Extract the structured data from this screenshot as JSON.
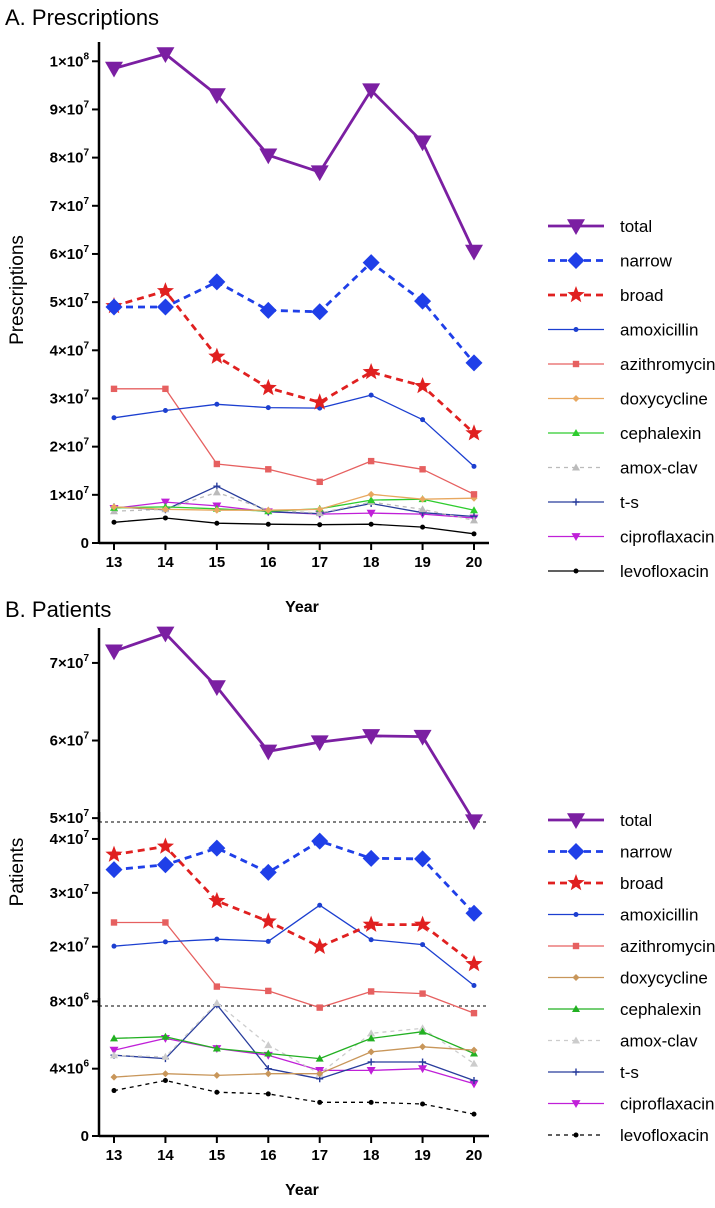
{
  "chart_data": [
    {
      "panel_id": "A",
      "type": "line",
      "title": "A. Prescriptions",
      "ylabel": "Prescriptions",
      "xlabel": "Year",
      "x": [
        13,
        14,
        15,
        16,
        17,
        18,
        19,
        20
      ],
      "ylim": [
        0,
        104000000
      ],
      "yticks": [
        {
          "value": 0,
          "mant": "0",
          "exp": ""
        },
        {
          "value": 10000000,
          "mant": "1×10",
          "exp": "7"
        },
        {
          "value": 20000000,
          "mant": "2×10",
          "exp": "7"
        },
        {
          "value": 30000000,
          "mant": "3×10",
          "exp": "7"
        },
        {
          "value": 40000000,
          "mant": "4×10",
          "exp": "7"
        },
        {
          "value": 50000000,
          "mant": "5×10",
          "exp": "7"
        },
        {
          "value": 60000000,
          "mant": "6×10",
          "exp": "7"
        },
        {
          "value": 70000000,
          "mant": "7×10",
          "exp": "7"
        },
        {
          "value": 80000000,
          "mant": "8×10",
          "exp": "7"
        },
        {
          "value": 90000000,
          "mant": "9×10",
          "exp": "7"
        },
        {
          "value": 100000000,
          "mant": "1×10",
          "exp": "8"
        }
      ],
      "series": [
        {
          "name": "total",
          "color": "#7B1FA2",
          "marker": "triangle-down",
          "dashed": false,
          "values": [
            98500000,
            101500000,
            93000000,
            80500000,
            77000000,
            94000000,
            83200000,
            60500000
          ]
        },
        {
          "name": "narrow",
          "color": "#1F3FE8",
          "marker": "diamond",
          "dashed": true,
          "values": [
            49000000,
            49000000,
            54200000,
            48300000,
            48000000,
            58200000,
            50200000,
            37400000
          ]
        },
        {
          "name": "broad",
          "color": "#E02020",
          "marker": "star",
          "dashed": true,
          "values": [
            49200000,
            52300000,
            38700000,
            32200000,
            29200000,
            35500000,
            32600000,
            22800000
          ]
        },
        {
          "name": "amoxicillin",
          "color": "#1C3FD0",
          "marker": "circle",
          "dashed": false,
          "values": [
            26000000,
            27500000,
            28800000,
            28100000,
            28000000,
            30700000,
            25600000,
            15900000
          ]
        },
        {
          "name": "azithromycin",
          "color": "#E66060",
          "marker": "square",
          "dashed": false,
          "values": [
            32000000,
            32000000,
            16400000,
            15300000,
            12700000,
            17000000,
            15300000,
            10100000
          ]
        },
        {
          "name": "doxycycline",
          "color": "#E8A860",
          "marker": "diamond-small",
          "dashed": false,
          "values": [
            7500000,
            7000000,
            6800000,
            6800000,
            7000000,
            10100000,
            9100000,
            9300000
          ]
        },
        {
          "name": "cephalexin",
          "color": "#2ECC2E",
          "marker": "triangle-up",
          "dashed": false,
          "values": [
            7300000,
            7500000,
            7100000,
            6600000,
            7100000,
            8900000,
            9100000,
            6800000
          ]
        },
        {
          "name": "amox-clav",
          "color": "#BBBBBB",
          "marker": "triangle-up",
          "dashed": true,
          "values": [
            6600000,
            7000000,
            10500000,
            6800000,
            6200000,
            8500000,
            7000000,
            4700000
          ]
        },
        {
          "name": "t-s",
          "color": "#283C9C",
          "marker": "plus",
          "dashed": false,
          "values": [
            7500000,
            6900000,
            11800000,
            6500000,
            6100000,
            8200000,
            6300000,
            5500000
          ]
        },
        {
          "name": "ciproflaxacin",
          "color": "#C020D8",
          "marker": "triangle-down",
          "dashed": false,
          "values": [
            7200000,
            8500000,
            7700000,
            6500000,
            6000000,
            6200000,
            6000000,
            5200000
          ]
        },
        {
          "name": "levofloxacin",
          "color": "#000000",
          "marker": "circle",
          "dashed": false,
          "values": [
            4300000,
            5200000,
            4100000,
            3900000,
            3800000,
            3900000,
            3300000,
            1900000
          ]
        }
      ]
    },
    {
      "panel_id": "B",
      "type": "line",
      "title": "B. Patients",
      "ylabel": "Patients",
      "xlabel": "Year",
      "x": [
        13,
        14,
        15,
        16,
        17,
        18,
        19,
        20
      ],
      "segments": [
        {
          "ylim": [
            49500000,
            74500000
          ],
          "yticks": [
            {
              "value": 50000000,
              "mant": "5×10",
              "exp": "7"
            },
            {
              "value": 60000000,
              "mant": "6×10",
              "exp": "7"
            },
            {
              "value": 70000000,
              "mant": "7×10",
              "exp": "7"
            }
          ]
        },
        {
          "ylim": [
            9000000,
            45000000
          ],
          "yticks": [
            {
              "value": 20000000,
              "mant": "2×10",
              "exp": "7"
            },
            {
              "value": 30000000,
              "mant": "3×10",
              "exp": "7"
            },
            {
              "value": 40000000,
              "mant": "4×10",
              "exp": "7"
            }
          ]
        },
        {
          "ylim": [
            0,
            8200000
          ],
          "yticks": [
            {
              "value": 0,
              "mant": "0",
              "exp": ""
            },
            {
              "value": 4000000,
              "mant": "4×10",
              "exp": "6"
            },
            {
              "value": 8000000,
              "mant": "8×10",
              "exp": "6"
            }
          ]
        }
      ],
      "series": [
        {
          "name": "total",
          "color": "#7B1FA2",
          "marker": "triangle-down",
          "dashed": false,
          "values": [
            71500000,
            73800000,
            66900000,
            58600000,
            59800000,
            60600000,
            60500000,
            43300000
          ]
        },
        {
          "name": "narrow",
          "color": "#1F3FE8",
          "marker": "diamond",
          "dashed": true,
          "values": [
            34300000,
            35200000,
            38300000,
            33800000,
            39600000,
            36400000,
            36300000,
            26200000
          ]
        },
        {
          "name": "broad",
          "color": "#E02020",
          "marker": "star",
          "dashed": true,
          "values": [
            37100000,
            38600000,
            28500000,
            24700000,
            20000000,
            24100000,
            24100000,
            16800000
          ]
        },
        {
          "name": "amoxicillin",
          "color": "#1C3FD0",
          "marker": "circle",
          "dashed": false,
          "values": [
            20100000,
            20900000,
            21400000,
            21000000,
            27700000,
            21300000,
            20400000,
            12800000
          ]
        },
        {
          "name": "azithromycin",
          "color": "#E66060",
          "marker": "square",
          "dashed": false,
          "values": [
            24500000,
            24500000,
            12600000,
            11800000,
            8700000,
            11700000,
            11300000,
            7300000
          ]
        },
        {
          "name": "doxycycline",
          "color": "#C8965A",
          "marker": "diamond-small",
          "dashed": false,
          "values": [
            3500000,
            3700000,
            3600000,
            3700000,
            3700000,
            5000000,
            5300000,
            5100000
          ]
        },
        {
          "name": "cephalexin",
          "color": "#22B022",
          "marker": "triangle-up",
          "dashed": false,
          "values": [
            5800000,
            5900000,
            5200000,
            4900000,
            4600000,
            5800000,
            6200000,
            4900000
          ]
        },
        {
          "name": "amox-clav",
          "color": "#CCCCCC",
          "marker": "triangle-up",
          "dashed": true,
          "values": [
            4800000,
            4700000,
            7900000,
            5400000,
            3700000,
            6100000,
            6400000,
            4300000
          ]
        },
        {
          "name": "t-s",
          "color": "#283C9C",
          "marker": "plus",
          "dashed": false,
          "values": [
            4800000,
            4600000,
            7800000,
            4000000,
            3400000,
            4400000,
            4400000,
            3300000
          ]
        },
        {
          "name": "ciproflaxacin",
          "color": "#C020D8",
          "marker": "triangle-down",
          "dashed": false,
          "values": [
            5100000,
            5800000,
            5200000,
            4800000,
            3900000,
            3900000,
            4000000,
            3100000
          ]
        },
        {
          "name": "levofloxacin",
          "color": "#000000",
          "marker": "circle",
          "dashed": true,
          "values": [
            2700000,
            3300000,
            2600000,
            2500000,
            2000000,
            2000000,
            1900000,
            1300000
          ]
        }
      ]
    }
  ]
}
